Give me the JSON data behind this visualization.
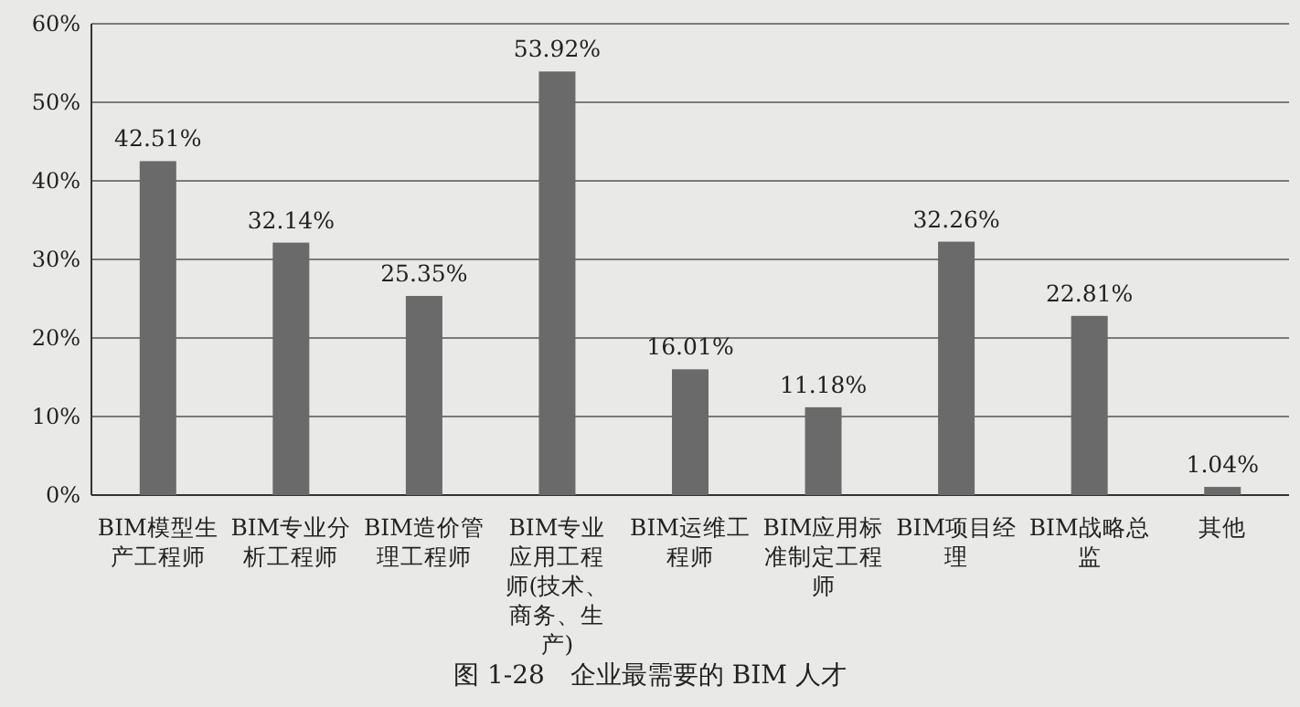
{
  "chart_data": {
    "type": "bar",
    "title": "图 1-28　企业最需要的 BIM 人才",
    "categories": [
      "BIM模型生产工程师",
      "BIM专业分析工程师",
      "BIM造价管理工程师",
      "BIM专业应用工程师(技术、商务、生产)",
      "BIM运维工程师",
      "BIM应用标准制定工程师",
      "BIM项目经理",
      "BIM战略总监",
      "其他"
    ],
    "values": [
      42.51,
      32.14,
      25.35,
      53.92,
      16.01,
      11.18,
      32.26,
      22.81,
      1.04
    ],
    "value_labels": [
      "42.51%",
      "32.14%",
      "25.35%",
      "53.92%",
      "16.01%",
      "11.18%",
      "32.26%",
      "22.81%",
      "1.04%"
    ],
    "color": "#6a6a6a",
    "ylim": [
      0,
      60
    ],
    "yticks": [
      {
        "value": 0,
        "label": "0%"
      },
      {
        "value": 10,
        "label": "10%"
      },
      {
        "value": 20,
        "label": "20%"
      },
      {
        "value": 30,
        "label": "30%"
      },
      {
        "value": 40,
        "label": "40%"
      },
      {
        "value": 50,
        "label": "50%"
      },
      {
        "value": 60,
        "label": "60%"
      }
    ],
    "grid": "y"
  }
}
